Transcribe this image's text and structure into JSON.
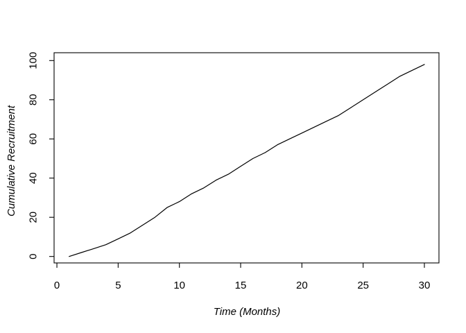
{
  "figure": {
    "background": "#ffffff",
    "frame_color": "#000000"
  },
  "chart_data": {
    "type": "line",
    "title": "",
    "xlabel": "Time (Months)",
    "ylabel": "Cumulative Recruitment",
    "x": [
      1,
      2,
      3,
      4,
      5,
      6,
      7,
      8,
      9,
      10,
      11,
      12,
      13,
      14,
      15,
      16,
      17,
      18,
      19,
      20,
      21,
      22,
      23,
      24,
      25,
      26,
      27,
      28,
      29,
      30
    ],
    "values": [
      0,
      2,
      4,
      6,
      9,
      12,
      16,
      20,
      25,
      28,
      32,
      35,
      39,
      42,
      46,
      50,
      53,
      57,
      60,
      63,
      66,
      69,
      72,
      76,
      80,
      84,
      88,
      92,
      95,
      98
    ],
    "xticks": [
      0,
      5,
      10,
      15,
      20,
      25,
      30
    ],
    "yticks": [
      0,
      20,
      40,
      60,
      80,
      100
    ],
    "xlim": [
      -0.23,
      31.19
    ],
    "ylim": [
      -3.3,
      104.0
    ],
    "grid": false,
    "legend": "none",
    "line_color": "#000000",
    "background": "#ffffff"
  }
}
